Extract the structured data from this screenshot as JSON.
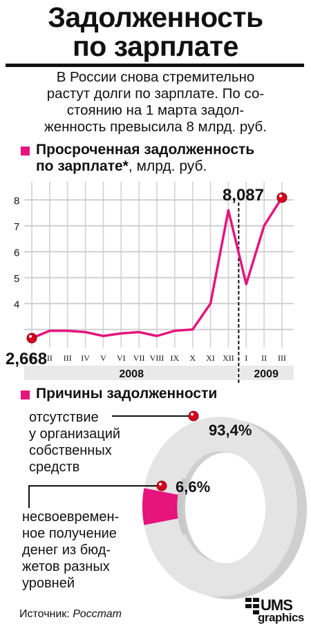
{
  "title_line1": "Задолженность",
  "title_line2": "по зарплате",
  "subtitle_lines": [
    "В России снова стремительно",
    "растут долги по зарплате. По со-",
    "стоянию на 1 марта задол-",
    "женность превысила 8 млрд. руб."
  ],
  "chart1_title_bold": "Просроченная задолженность",
  "chart1_title_bold2": "по зарплате*",
  "chart1_title_rest": ", млрд. руб.",
  "chart2_title": "Причины задолженности",
  "source_label": "Источник:",
  "source_name": "Росстат",
  "logo_top": "UMS",
  "logo_bottom": "graphics",
  "colors": {
    "accent": "#e6147c",
    "grid": "#cfcfcf",
    "panel": "#e9e9e9",
    "point": "#d7001f"
  },
  "chart_data": [
    {
      "type": "line",
      "title": "Просроченная задолженность по зарплате*, млрд. руб.",
      "ylim": [
        2.3,
        8.7
      ],
      "yticks": [
        "4",
        "5",
        "6",
        "7",
        "8"
      ],
      "x": [
        "I",
        "II",
        "III",
        "IV",
        "V",
        "VI",
        "VII",
        "VIII",
        "IX",
        "X",
        "XI",
        "XII",
        "I",
        "II",
        "III"
      ],
      "year_labels": [
        "2008",
        "2009"
      ],
      "series": [
        {
          "values": [
            2.668,
            2.95,
            2.95,
            2.9,
            2.75,
            2.85,
            2.9,
            2.75,
            2.95,
            3.0,
            4.0,
            7.6,
            4.75,
            7.0,
            8.087
          ]
        }
      ],
      "labels": {
        "start": "2,668",
        "end": "8,087"
      },
      "grid": true
    },
    {
      "type": "pie",
      "title": "Причины задолженности",
      "slices": [
        {
          "label": "отсутствие у организаций собственных средств",
          "label_lines": [
            "отсутствие",
            "у организаций",
            "собственных",
            "средств"
          ],
          "value": 93.4,
          "value_label": "93,4%"
        },
        {
          "label": "несвоевременное получение денег из бюджетов разных уровней",
          "label_lines": [
            "несвоевремен-",
            "ное получение",
            "денег из бюд-",
            "жетов разных",
            "уровней"
          ],
          "value": 6.6,
          "value_label": "6,6%"
        }
      ]
    }
  ]
}
